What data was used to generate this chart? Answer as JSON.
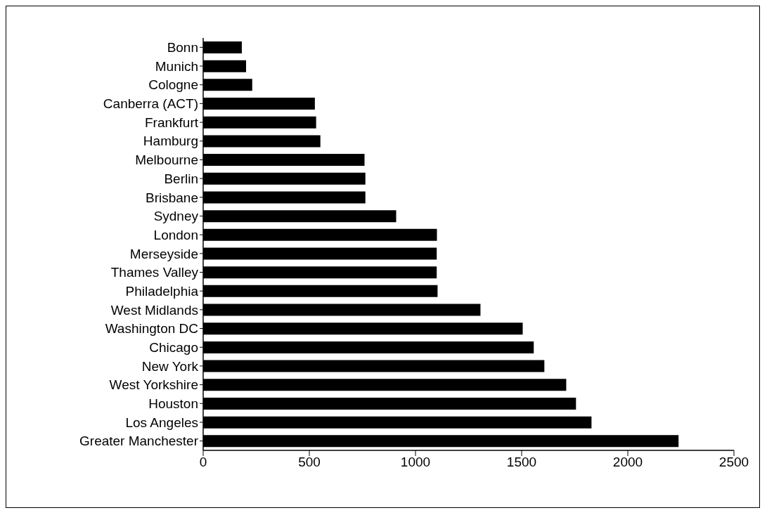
{
  "chart_data": {
    "type": "bar",
    "orientation": "horizontal",
    "categories": [
      "Bonn",
      "Munich",
      "Cologne",
      "Canberra (ACT)",
      "Frankfurt",
      "Hamburg",
      "Melbourne",
      "Berlin",
      "Brisbane",
      "Sydney",
      "London",
      "Merseyside",
      "Thames Valley",
      "Philadelphia",
      "West Midlands",
      "Washington DC",
      "Chicago",
      "New York",
      "West Yorkshire",
      "Houston",
      "Los Angeles",
      "Greater Manchester"
    ],
    "values": [
      182,
      202,
      231,
      526,
      532,
      552,
      760,
      764,
      764,
      909,
      1101,
      1100,
      1100,
      1104,
      1306,
      1505,
      1557,
      1607,
      1710,
      1756,
      1829,
      2239
    ],
    "color": "#000000",
    "xlim": [
      0,
      2500
    ],
    "xticks": [
      0,
      500,
      1000,
      1500,
      2000,
      2500
    ],
    "grid": false,
    "legend": false
  }
}
